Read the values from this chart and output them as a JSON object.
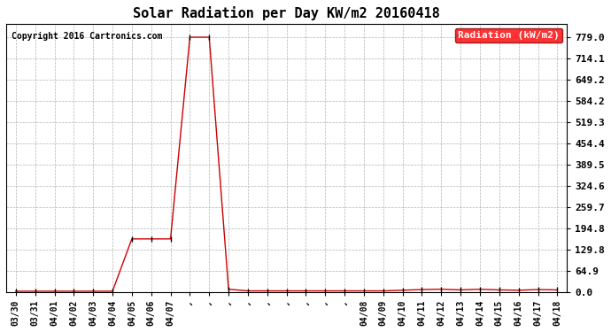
{
  "title": "Solar Radiation per Day KW/m2 20160418",
  "copyright_text": "Copyright 2016 Cartronics.com",
  "legend_label": "Radiation (kW/m2)",
  "line_color": "#cc0000",
  "marker_color": "#000000",
  "bg_color": "#ffffff",
  "plot_bg": "#ffffff",
  "ylim": [
    0.0,
    820.0
  ],
  "yticks": [
    0.0,
    64.9,
    129.8,
    194.8,
    259.7,
    324.6,
    389.5,
    454.4,
    519.3,
    584.2,
    649.2,
    714.1,
    779.0
  ],
  "x_labels": [
    "03/30",
    "03/31",
    "04/01",
    "04/02",
    "04/03",
    "04/04",
    "04/05",
    "04/06",
    "04/07",
    "",
    "",
    "",
    "",
    "",
    "",
    "",
    "",
    "",
    "04/08",
    "04/09",
    "04/10",
    "04/11",
    "04/12",
    "04/13",
    "04/14",
    "04/15",
    "04/16",
    "04/17",
    "04/18"
  ],
  "x_values": [
    0,
    1,
    2,
    3,
    4,
    5,
    6,
    7,
    8,
    9,
    10,
    11,
    12,
    13,
    14,
    15,
    16,
    17,
    18,
    19,
    20,
    21,
    22,
    23,
    24,
    25,
    26,
    27,
    28
  ],
  "y_values": [
    2,
    2,
    2,
    2,
    2,
    2,
    162,
    162,
    162,
    779,
    779,
    8,
    3,
    3,
    3,
    3,
    3,
    3,
    3,
    3,
    5,
    7,
    8,
    6,
    8,
    6,
    5,
    7,
    6
  ]
}
